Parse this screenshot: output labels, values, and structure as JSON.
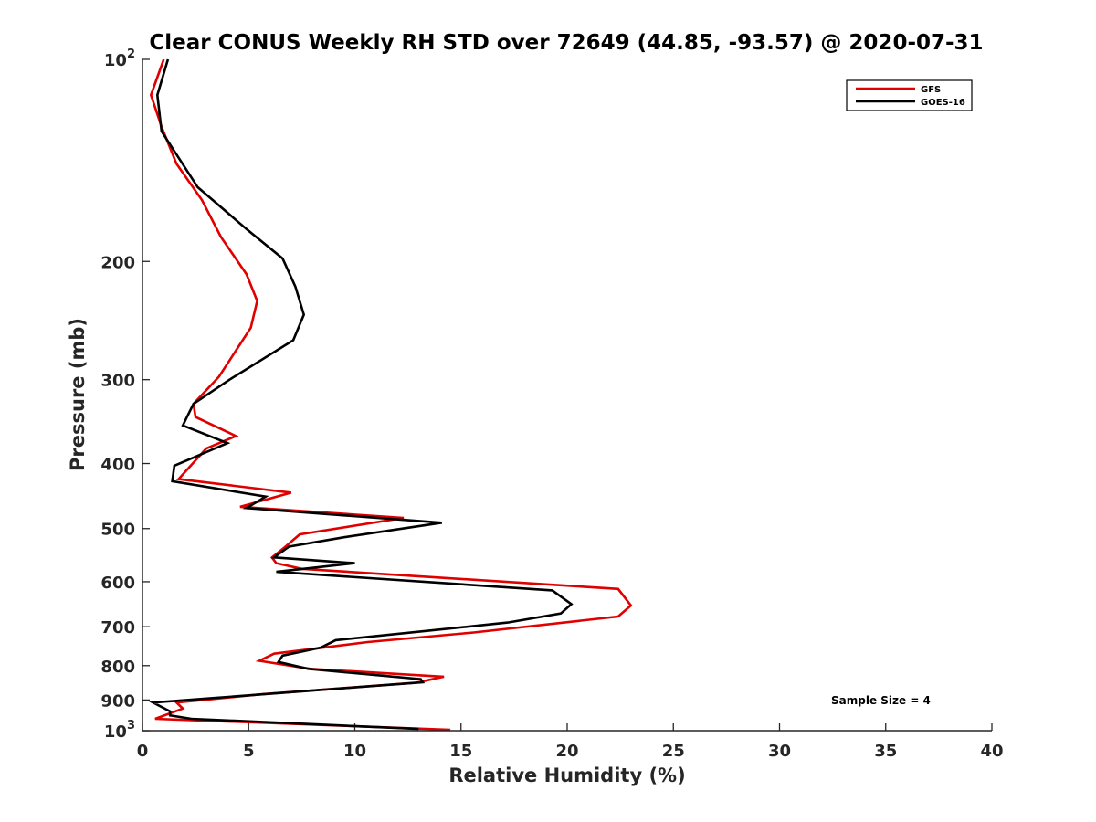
{
  "chart_data": {
    "type": "line",
    "title": "Clear CONUS Weekly RH STD over 72649 (44.85, -93.57) @ 2020-07-31",
    "xlabel": "Relative Humidity (%)",
    "ylabel": "Pressure (mb)",
    "xlim": [
      0,
      40
    ],
    "ylim": [
      100,
      1000
    ],
    "y_scale": "log",
    "y_reversed": true,
    "grid": false,
    "legend_position": "top-right",
    "x_ticks": [
      0,
      5,
      10,
      15,
      20,
      25,
      30,
      35,
      40
    ],
    "x_tick_labels": [
      "0",
      "5",
      "10",
      "15",
      "20",
      "25",
      "30",
      "35",
      "40"
    ],
    "y_ticks": [
      100,
      200,
      300,
      400,
      500,
      600,
      700,
      800,
      900,
      1000
    ],
    "y_tick_labels": [
      {
        "base": "10",
        "exp": "2"
      },
      {
        "base": "200",
        "exp": ""
      },
      {
        "base": "300",
        "exp": ""
      },
      {
        "base": "400",
        "exp": ""
      },
      {
        "base": "500",
        "exp": ""
      },
      {
        "base": "600",
        "exp": ""
      },
      {
        "base": "700",
        "exp": ""
      },
      {
        "base": "800",
        "exp": ""
      },
      {
        "base": "900",
        "exp": ""
      },
      {
        "base": "10",
        "exp": "3"
      }
    ],
    "annotation": "Sample Size = 4",
    "series": [
      {
        "name": "GFS",
        "color": "#e00000",
        "points": [
          [
            1.0,
            100
          ],
          [
            0.4,
            113
          ],
          [
            0.9,
            126
          ],
          [
            1.6,
            143
          ],
          [
            2.8,
            162
          ],
          [
            3.7,
            184
          ],
          [
            4.9,
            209
          ],
          [
            5.4,
            229
          ],
          [
            5.1,
            251
          ],
          [
            3.6,
            297
          ],
          [
            2.4,
            326
          ],
          [
            2.5,
            341
          ],
          [
            4.4,
            364
          ],
          [
            3.0,
            380
          ],
          [
            1.7,
            422
          ],
          [
            7.0,
            442
          ],
          [
            4.6,
            464
          ],
          [
            12.3,
            482
          ],
          [
            7.4,
            510
          ],
          [
            6.7,
            533
          ],
          [
            6.1,
            552
          ],
          [
            6.3,
            563
          ],
          [
            7.5,
            574
          ],
          [
            22.4,
            615
          ],
          [
            23.0,
            651
          ],
          [
            22.4,
            676
          ],
          [
            15.6,
            714
          ],
          [
            10.6,
            738
          ],
          [
            6.2,
            768
          ],
          [
            5.5,
            787
          ],
          [
            7.9,
            809
          ],
          [
            14.2,
            831
          ],
          [
            12.9,
            848
          ],
          [
            5.7,
            882
          ],
          [
            1.6,
            908
          ],
          [
            1.9,
            927
          ],
          [
            0.6,
            960
          ],
          [
            14.5,
            997
          ]
        ]
      },
      {
        "name": "GOES-16",
        "color": "#000000",
        "points": [
          [
            1.2,
            100
          ],
          [
            0.7,
            113
          ],
          [
            0.9,
            128
          ],
          [
            2.6,
            155
          ],
          [
            4.9,
            179
          ],
          [
            6.6,
            198
          ],
          [
            7.2,
            218
          ],
          [
            7.6,
            240
          ],
          [
            7.1,
            262
          ],
          [
            4.1,
            300
          ],
          [
            2.4,
            326
          ],
          [
            1.9,
            351
          ],
          [
            4.0,
            373
          ],
          [
            1.5,
            403
          ],
          [
            1.4,
            425
          ],
          [
            5.8,
            448
          ],
          [
            4.9,
            466
          ],
          [
            14.1,
            490
          ],
          [
            9.5,
            515
          ],
          [
            6.9,
            532
          ],
          [
            6.2,
            552
          ],
          [
            10.0,
            563
          ],
          [
            6.3,
            580
          ],
          [
            19.3,
            618
          ],
          [
            20.2,
            648
          ],
          [
            19.7,
            669
          ],
          [
            17.2,
            690
          ],
          [
            9.1,
            733
          ],
          [
            8.4,
            752
          ],
          [
            6.6,
            773
          ],
          [
            6.4,
            790
          ],
          [
            7.8,
            809
          ],
          [
            13.1,
            838
          ],
          [
            13.2,
            847
          ],
          [
            10.0,
            862
          ],
          [
            0.5,
            908
          ],
          [
            1.3,
            936
          ],
          [
            1.3,
            949
          ],
          [
            2.3,
            960
          ],
          [
            13.0,
            994
          ]
        ]
      }
    ]
  }
}
